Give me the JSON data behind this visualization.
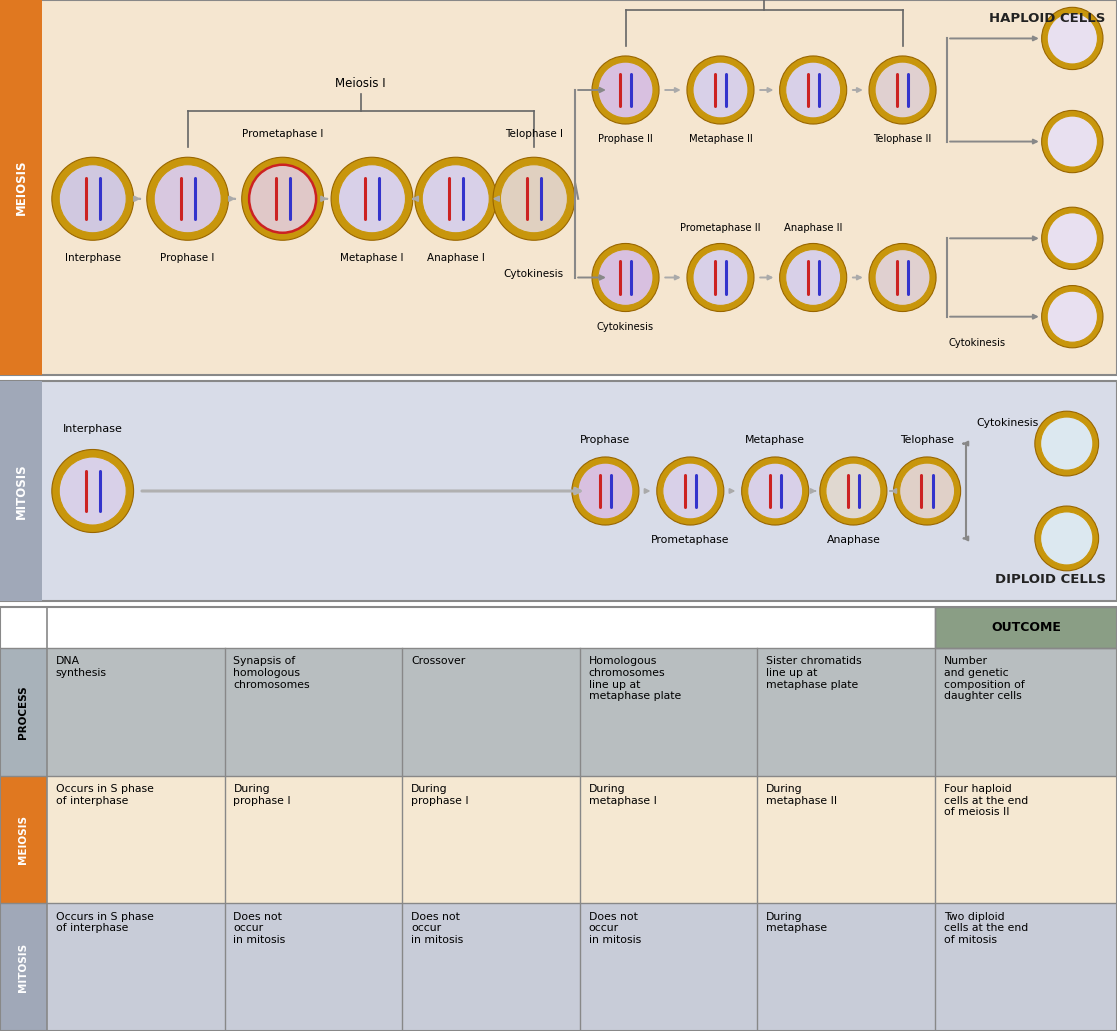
{
  "fig_width": 11.17,
  "fig_height": 10.31,
  "bg_color": "#ffffff",
  "meiosis_bg": "#f5e6d0",
  "mitosis_bg": "#d8dce8",
  "meiosis_label_bg": "#e07820",
  "mitosis_label_bg": "#a0a8b8",
  "haploid_text": "HAPLOID CELLS",
  "diploid_text": "DIPLOID CELLS",
  "outcome_header": "OUTCOME",
  "process_label": "PROCESS",
  "meiosis_label": "MEIOSIS",
  "mitosis_label": "MITOSIS",
  "process_cols": [
    "DNA\nsynthesis",
    "Synapsis of\nhomologous\nchromosomes",
    "Crossover",
    "Homologous\nchromosomes\nline up at\nmetaphase plate",
    "Sister chromatids\nline up at\nmetaphase plate",
    "Number\nand genetic\ncomposition of\ndaughter cells"
  ],
  "meiosis_cols": [
    "Occurs in S phase\nof interphase",
    "During\nprophase I",
    "During\nprophase I",
    "During\nmetaphase I",
    "During\nmetaphase II",
    "Four haploid\ncells at the end\nof meiosis II"
  ],
  "mitosis_cols": [
    "Occurs in S phase\nof interphase",
    "Does not\noccur\nin mitosis",
    "Does not\noccur\nin mitosis",
    "Does not\noccur\nin mitosis",
    "During\nmetaphase",
    "Two diploid\ncells at the end\nof mitosis"
  ]
}
